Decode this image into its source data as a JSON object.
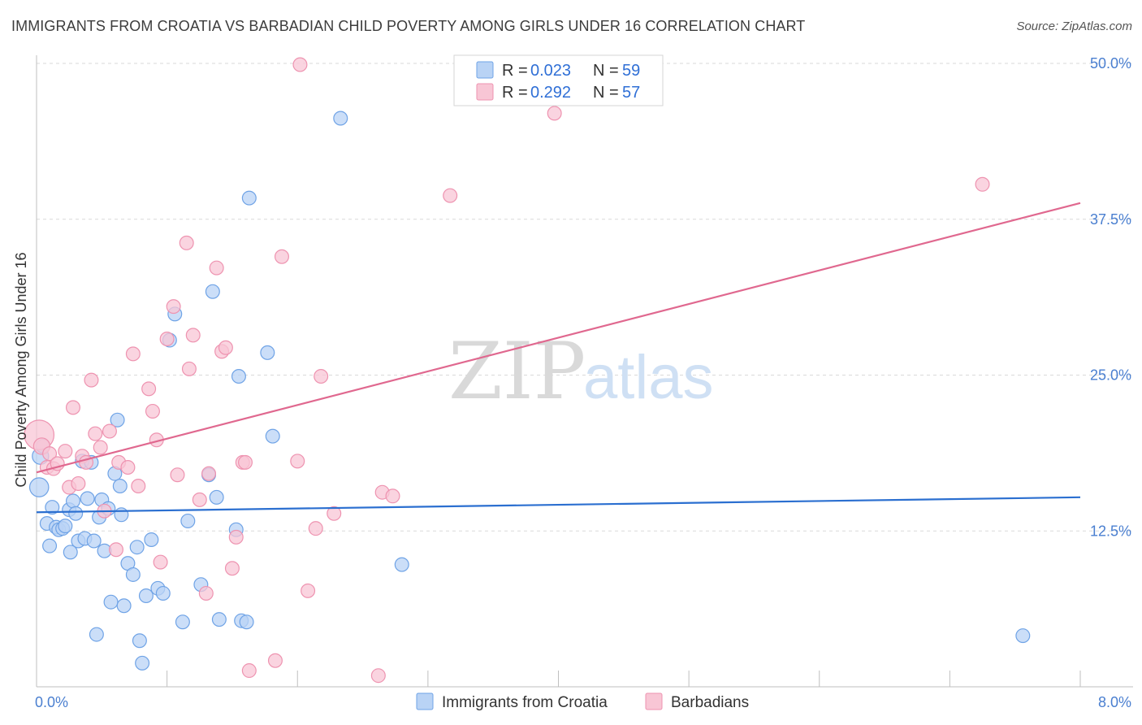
{
  "title": "IMMIGRANTS FROM CROATIA VS BARBADIAN CHILD POVERTY AMONG GIRLS UNDER 16 CORRELATION CHART",
  "source": "Source: ZipAtlas.com",
  "watermark": {
    "zip": "ZIP",
    "atlas": "atlas"
  },
  "legend": {
    "rows": [
      {
        "r_label": "R =",
        "r_value": "0.023",
        "n_label": "N =",
        "n_value": "59"
      },
      {
        "r_label": "R =",
        "r_value": "0.292",
        "n_label": "N =",
        "n_value": "57"
      }
    ]
  },
  "colors": {
    "blue_fill": "#b9d3f5",
    "blue_stroke": "#6fa3e6",
    "blue_line": "#2b6fd0",
    "pink_fill": "#f8c6d5",
    "pink_stroke": "#ee93b0",
    "pink_line": "#e0688f",
    "grid": "#d9d9d9",
    "axis_label": "#4a7fd0"
  },
  "chart_data": {
    "type": "scatter",
    "title": "IMMIGRANTS FROM CROATIA VS BARBADIAN CHILD POVERTY AMONG GIRLS UNDER 16 CORRELATION CHART",
    "xlabel": "",
    "ylabel": "Child Poverty Among Girls Under 16",
    "xlim": [
      0,
      8
    ],
    "ylim": [
      0,
      50
    ],
    "x_tick_labels": [
      "0.0%",
      "8.0%"
    ],
    "y_ticks": [
      12.5,
      25.0,
      37.5,
      50.0
    ],
    "y_tick_labels": [
      "12.5%",
      "25.0%",
      "37.5%",
      "50.0%"
    ],
    "grid": true,
    "legend_position": "top-center",
    "series": [
      {
        "name": "Immigrants from Croatia",
        "color": "blue",
        "r": "0.023",
        "n": "59",
        "trend": {
          "x": [
            0,
            8
          ],
          "y": [
            14.0,
            15.2
          ]
        },
        "points": [
          [
            0.02,
            16.0,
            14
          ],
          [
            0.03,
            18.5,
            12
          ],
          [
            0.05,
            19.3,
            10
          ],
          [
            0.08,
            13.1,
            10
          ],
          [
            0.1,
            11.3,
            10
          ],
          [
            0.12,
            14.4,
            10
          ],
          [
            0.15,
            12.8,
            10
          ],
          [
            0.17,
            12.6,
            10
          ],
          [
            0.2,
            12.7,
            10
          ],
          [
            0.22,
            12.9,
            10
          ],
          [
            0.25,
            14.2,
            10
          ],
          [
            0.26,
            10.8,
            10
          ],
          [
            0.28,
            14.9,
            10
          ],
          [
            0.3,
            13.9,
            10
          ],
          [
            0.32,
            11.7,
            10
          ],
          [
            0.35,
            18.1,
            10
          ],
          [
            0.37,
            11.9,
            10
          ],
          [
            0.39,
            15.1,
            10
          ],
          [
            0.42,
            18.0,
            10
          ],
          [
            0.44,
            11.7,
            10
          ],
          [
            0.46,
            4.2,
            10
          ],
          [
            0.48,
            13.6,
            10
          ],
          [
            0.5,
            15.0,
            10
          ],
          [
            0.52,
            10.9,
            10
          ],
          [
            0.55,
            14.3,
            10
          ],
          [
            0.57,
            6.8,
            10
          ],
          [
            0.6,
            17.1,
            10
          ],
          [
            0.62,
            21.4,
            10
          ],
          [
            0.64,
            16.1,
            10
          ],
          [
            0.65,
            13.8,
            10
          ],
          [
            0.67,
            6.5,
            10
          ],
          [
            0.7,
            9.9,
            10
          ],
          [
            0.74,
            9.0,
            10
          ],
          [
            0.77,
            11.2,
            10
          ],
          [
            0.79,
            3.7,
            10
          ],
          [
            0.81,
            1.9,
            10
          ],
          [
            0.84,
            7.3,
            10
          ],
          [
            0.88,
            11.8,
            10
          ],
          [
            0.93,
            7.9,
            10
          ],
          [
            0.97,
            7.5,
            10
          ],
          [
            1.02,
            27.8,
            10
          ],
          [
            1.06,
            29.9,
            10
          ],
          [
            1.12,
            5.2,
            10
          ],
          [
            1.16,
            13.3,
            10
          ],
          [
            1.26,
            8.2,
            10
          ],
          [
            1.32,
            17.0,
            10
          ],
          [
            1.35,
            31.7,
            10
          ],
          [
            1.38,
            15.2,
            10
          ],
          [
            1.4,
            5.4,
            10
          ],
          [
            1.53,
            12.6,
            10
          ],
          [
            1.55,
            24.9,
            10
          ],
          [
            1.57,
            5.3,
            10
          ],
          [
            1.61,
            5.2,
            10
          ],
          [
            1.63,
            39.2,
            10
          ],
          [
            1.77,
            26.8,
            10
          ],
          [
            1.81,
            20.1,
            10
          ],
          [
            2.33,
            45.6,
            10
          ],
          [
            2.8,
            9.8,
            10
          ],
          [
            7.56,
            4.1,
            10
          ]
        ]
      },
      {
        "name": "Barbadians",
        "color": "pink",
        "r": "0.292",
        "n": "57",
        "trend": {
          "x": [
            0,
            8
          ],
          "y": [
            17.2,
            38.8
          ]
        },
        "points": [
          [
            0.02,
            20.2,
            22
          ],
          [
            0.04,
            19.3,
            12
          ],
          [
            0.08,
            17.6,
            10
          ],
          [
            0.1,
            18.7,
            10
          ],
          [
            0.13,
            17.5,
            10
          ],
          [
            0.16,
            17.9,
            10
          ],
          [
            0.22,
            18.9,
            10
          ],
          [
            0.25,
            16.0,
            10
          ],
          [
            0.28,
            22.4,
            10
          ],
          [
            0.32,
            16.3,
            10
          ],
          [
            0.35,
            18.5,
            10
          ],
          [
            0.38,
            18.0,
            10
          ],
          [
            0.42,
            24.6,
            10
          ],
          [
            0.45,
            20.3,
            10
          ],
          [
            0.49,
            19.2,
            10
          ],
          [
            0.52,
            14.1,
            10
          ],
          [
            0.56,
            20.5,
            10
          ],
          [
            0.61,
            11.0,
            10
          ],
          [
            0.63,
            18.0,
            10
          ],
          [
            0.7,
            17.6,
            10
          ],
          [
            0.74,
            26.7,
            10
          ],
          [
            0.78,
            16.1,
            10
          ],
          [
            0.86,
            23.9,
            10
          ],
          [
            0.89,
            22.1,
            10
          ],
          [
            0.92,
            19.8,
            10
          ],
          [
            0.95,
            10.0,
            10
          ],
          [
            1.0,
            27.9,
            10
          ],
          [
            1.05,
            30.5,
            10
          ],
          [
            1.08,
            17.0,
            10
          ],
          [
            1.15,
            35.6,
            10
          ],
          [
            1.17,
            25.5,
            10
          ],
          [
            1.2,
            28.2,
            10
          ],
          [
            1.25,
            15.0,
            10
          ],
          [
            1.3,
            7.5,
            10
          ],
          [
            1.32,
            17.1,
            10
          ],
          [
            1.38,
            33.6,
            10
          ],
          [
            1.42,
            26.9,
            10
          ],
          [
            1.45,
            27.2,
            10
          ],
          [
            1.5,
            9.5,
            10
          ],
          [
            1.53,
            12.0,
            10
          ],
          [
            1.58,
            18.0,
            10
          ],
          [
            1.6,
            18.0,
            10
          ],
          [
            1.63,
            1.3,
            10
          ],
          [
            1.83,
            2.1,
            10
          ],
          [
            1.88,
            34.5,
            10
          ],
          [
            2.0,
            18.1,
            10
          ],
          [
            2.02,
            49.9,
            10
          ],
          [
            2.08,
            7.7,
            10
          ],
          [
            2.14,
            12.7,
            10
          ],
          [
            2.18,
            24.9,
            10
          ],
          [
            2.28,
            13.9,
            10
          ],
          [
            2.62,
            0.9,
            10
          ],
          [
            2.65,
            15.6,
            10
          ],
          [
            2.73,
            15.3,
            10
          ],
          [
            3.17,
            39.4,
            10
          ],
          [
            3.97,
            46.0,
            10
          ],
          [
            7.25,
            40.3,
            10
          ]
        ]
      }
    ]
  }
}
